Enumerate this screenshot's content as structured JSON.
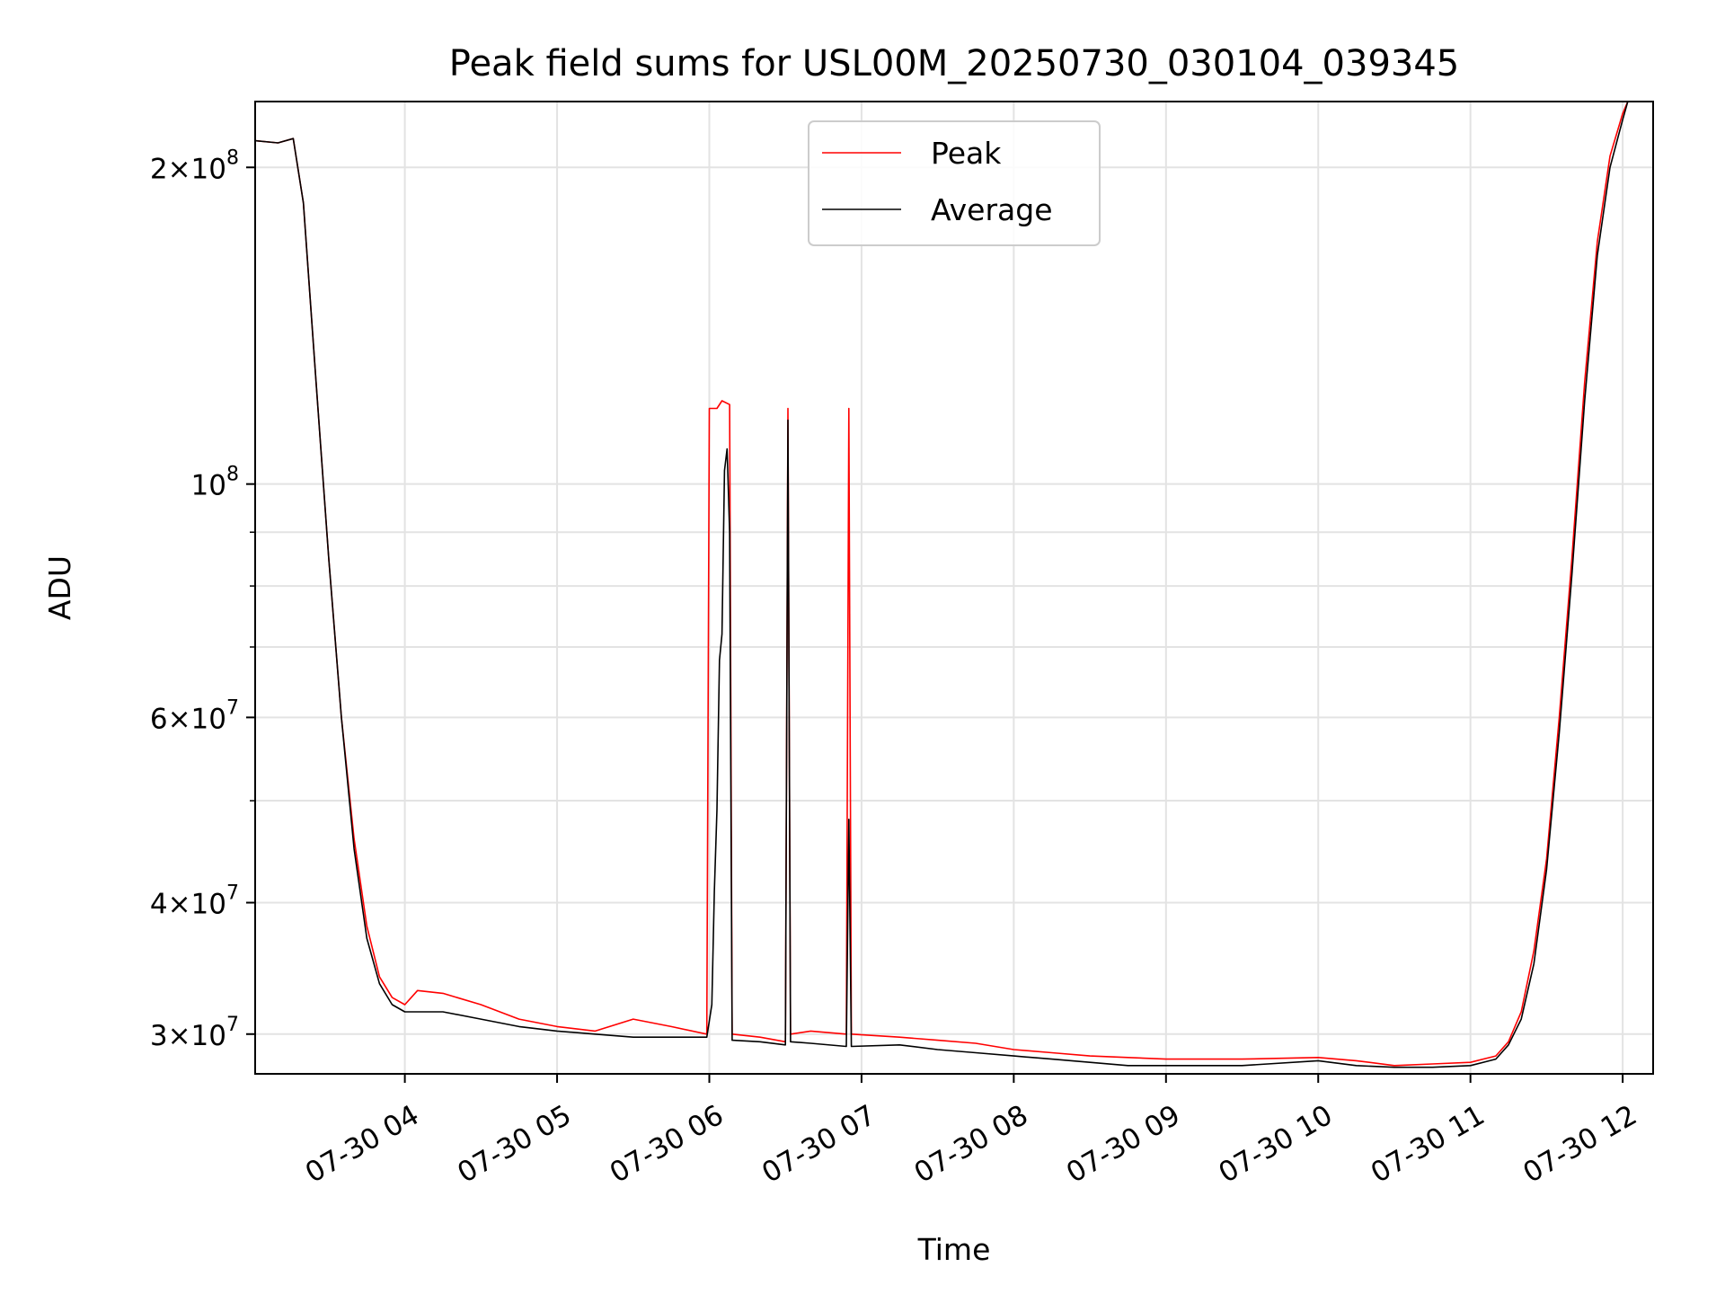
{
  "chart_data": {
    "type": "line",
    "title": "Peak field sums for USL00M_20250730_030104_039345",
    "xlabel": "Time",
    "ylabel": "ADU",
    "yscale": "log",
    "xlim": [
      "2025-07-30 03:01",
      "2025-07-30 12:12"
    ],
    "ylim": [
      27500000,
      231000000
    ],
    "grid": true,
    "legend": {
      "placement": "top-center"
    },
    "x_ticks": [
      "07-30 04",
      "07-30 05",
      "07-30 06",
      "07-30 07",
      "07-30 08",
      "07-30 09",
      "07-30 10",
      "07-30 11",
      "07-30 12"
    ],
    "y_ticks": [
      {
        "value": 30000000,
        "mant": "3",
        "exp": "7"
      },
      {
        "value": 40000000,
        "mant": "4",
        "exp": "7"
      },
      {
        "value": 60000000,
        "mant": "6",
        "exp": "7"
      },
      {
        "value": 100000000,
        "mant": "",
        "exp": "8"
      },
      {
        "value": 200000000,
        "mant": "2",
        "exp": "8"
      }
    ],
    "series": [
      {
        "name": "Peak",
        "color": "#ff0000",
        "points": [
          [
            "03:01",
            212000000
          ],
          [
            "03:10",
            211000000
          ],
          [
            "03:16",
            213000000
          ],
          [
            "03:20",
            185000000
          ],
          [
            "03:25",
            125000000
          ],
          [
            "03:30",
            85000000
          ],
          [
            "03:35",
            60000000
          ],
          [
            "03:40",
            46000000
          ],
          [
            "03:45",
            38000000
          ],
          [
            "03:50",
            34000000
          ],
          [
            "03:55",
            32500000
          ],
          [
            "04:00",
            32000000
          ],
          [
            "04:05",
            33000000
          ],
          [
            "04:15",
            32800000
          ],
          [
            "04:30",
            32000000
          ],
          [
            "04:45",
            31000000
          ],
          [
            "05:00",
            30500000
          ],
          [
            "05:15",
            30200000
          ],
          [
            "05:30",
            31000000
          ],
          [
            "05:45",
            30500000
          ],
          [
            "05:59",
            30000000
          ],
          [
            "06:00",
            118000000
          ],
          [
            "06:03",
            118000000
          ],
          [
            "06:05",
            120000000
          ],
          [
            "06:08",
            119000000
          ],
          [
            "06:09",
            30000000
          ],
          [
            "06:20",
            29800000
          ],
          [
            "06:30",
            29500000
          ],
          [
            "06:31",
            118000000
          ],
          [
            "06:32",
            30000000
          ],
          [
            "06:40",
            30200000
          ],
          [
            "06:54",
            30000000
          ],
          [
            "06:55",
            118000000
          ],
          [
            "06:56",
            30000000
          ],
          [
            "07:15",
            29800000
          ],
          [
            "07:30",
            29600000
          ],
          [
            "07:45",
            29400000
          ],
          [
            "08:00",
            29000000
          ],
          [
            "08:15",
            28800000
          ],
          [
            "08:30",
            28600000
          ],
          [
            "08:45",
            28500000
          ],
          [
            "09:00",
            28400000
          ],
          [
            "09:30",
            28400000
          ],
          [
            "10:00",
            28500000
          ],
          [
            "10:15",
            28300000
          ],
          [
            "10:30",
            28000000
          ],
          [
            "10:45",
            28100000
          ],
          [
            "11:00",
            28200000
          ],
          [
            "11:10",
            28600000
          ],
          [
            "11:15",
            29500000
          ],
          [
            "11:20",
            31500000
          ],
          [
            "11:25",
            36000000
          ],
          [
            "11:30",
            44000000
          ],
          [
            "11:35",
            60000000
          ],
          [
            "11:40",
            85000000
          ],
          [
            "11:45",
            125000000
          ],
          [
            "11:50",
            170000000
          ],
          [
            "11:55",
            205000000
          ],
          [
            "12:00",
            225000000
          ],
          [
            "12:02",
            231000000
          ]
        ]
      },
      {
        "name": "Average",
        "color": "#000000",
        "points": [
          [
            "03:01",
            212000000
          ],
          [
            "03:10",
            211000000
          ],
          [
            "03:16",
            213000000
          ],
          [
            "03:20",
            185000000
          ],
          [
            "03:25",
            125000000
          ],
          [
            "03:30",
            85000000
          ],
          [
            "03:35",
            60000000
          ],
          [
            "03:40",
            45000000
          ],
          [
            "03:45",
            37000000
          ],
          [
            "03:50",
            33500000
          ],
          [
            "03:55",
            32000000
          ],
          [
            "04:00",
            31500000
          ],
          [
            "04:15",
            31500000
          ],
          [
            "04:30",
            31000000
          ],
          [
            "04:45",
            30500000
          ],
          [
            "05:00",
            30200000
          ],
          [
            "05:15",
            30000000
          ],
          [
            "05:30",
            29800000
          ],
          [
            "05:45",
            29800000
          ],
          [
            "05:59",
            29800000
          ],
          [
            "06:01",
            32000000
          ],
          [
            "06:02",
            41000000
          ],
          [
            "06:03",
            49000000
          ],
          [
            "06:04",
            68000000
          ],
          [
            "06:05",
            72000000
          ],
          [
            "06:06",
            103000000
          ],
          [
            "06:07",
            108000000
          ],
          [
            "06:08",
            90000000
          ],
          [
            "06:09",
            29600000
          ],
          [
            "06:20",
            29500000
          ],
          [
            "06:30",
            29300000
          ],
          [
            "06:31",
            115000000
          ],
          [
            "06:32",
            29500000
          ],
          [
            "06:40",
            29400000
          ],
          [
            "06:54",
            29200000
          ],
          [
            "06:55",
            48000000
          ],
          [
            "06:56",
            29200000
          ],
          [
            "07:15",
            29300000
          ],
          [
            "07:30",
            29000000
          ],
          [
            "07:45",
            28800000
          ],
          [
            "08:00",
            28600000
          ],
          [
            "08:15",
            28400000
          ],
          [
            "08:30",
            28200000
          ],
          [
            "08:45",
            28000000
          ],
          [
            "09:00",
            28000000
          ],
          [
            "09:30",
            28000000
          ],
          [
            "10:00",
            28300000
          ],
          [
            "10:15",
            28000000
          ],
          [
            "10:30",
            27900000
          ],
          [
            "10:45",
            27900000
          ],
          [
            "11:00",
            28000000
          ],
          [
            "11:10",
            28400000
          ],
          [
            "11:15",
            29300000
          ],
          [
            "11:20",
            31000000
          ],
          [
            "11:25",
            35000000
          ],
          [
            "11:30",
            43000000
          ],
          [
            "11:35",
            58000000
          ],
          [
            "11:40",
            82000000
          ],
          [
            "11:45",
            120000000
          ],
          [
            "11:50",
            165000000
          ],
          [
            "11:55",
            200000000
          ],
          [
            "12:00",
            222000000
          ],
          [
            "12:02",
            231000000
          ]
        ]
      }
    ]
  }
}
